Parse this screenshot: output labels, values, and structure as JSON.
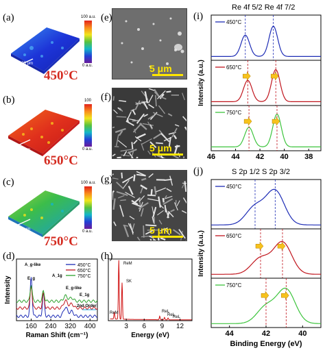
{
  "panels": {
    "a": {
      "label": "(a)",
      "temp": "450°C",
      "cbar_top": "100 a.u.",
      "cbar_bottom": "0 a.u.",
      "scale": "100 μm"
    },
    "b": {
      "label": "(b)",
      "temp": "650°C",
      "cbar_top": "100",
      "cbar_bottom": "0 a.u.",
      "scale": "100 μm"
    },
    "c": {
      "label": "(c)",
      "temp": "750°C",
      "cbar_top": "100 a.u.",
      "cbar_bottom": "0 a.u.",
      "scale": "100 μm"
    },
    "e": {
      "label": "(e)",
      "scale": "5 μm"
    },
    "f": {
      "label": "(f)",
      "scale": "5 μm"
    },
    "g": {
      "label": "(g)",
      "scale": "5 μm"
    }
  },
  "chart_data": [
    {
      "panel": "(d)",
      "type": "line",
      "xlabel": "Raman Shift (cm⁻¹)",
      "ylabel": "Intensity",
      "xticks": [
        160,
        240,
        320,
        400
      ],
      "xlim": [
        100,
        430
      ],
      "annotations": [
        "A_g-like",
        "E_g",
        "A_1g",
        "E_g-like",
        "E_1g",
        "2nd Order"
      ],
      "series": [
        {
          "name": "450°C",
          "color": "#1c2bb5",
          "peaks": [
            [
              160,
              0.95
            ],
            [
              210,
              0.55
            ],
            [
              300,
              0.22
            ],
            [
              325,
              0.12
            ]
          ]
        },
        {
          "name": "650°C",
          "color": "#c0141c",
          "peaks": [
            [
              160,
              0.55
            ],
            [
              210,
              0.35
            ],
            [
              300,
              0.18
            ],
            [
              325,
              0.1
            ]
          ]
        },
        {
          "name": "750°C",
          "color": "#2ca02c",
          "peaks": [
            [
              160,
              0.4
            ],
            [
              210,
              0.25
            ],
            [
              300,
              0.13
            ],
            [
              325,
              0.08
            ]
          ]
        }
      ]
    },
    {
      "panel": "(h)",
      "type": "line",
      "xlabel": "Energy (eV)",
      "xticks": [
        3,
        6,
        9,
        12
      ],
      "xlim": [
        0,
        14
      ],
      "annotations": [
        "ReM",
        "SK",
        "ReM",
        "ReL",
        "ReL",
        "ReL"
      ],
      "series": [
        {
          "name": "",
          "color": "#d01010",
          "peaks": [
            [
              1.75,
              1.0
            ],
            [
              2.3,
              0.62
            ],
            [
              1.0,
              0.12
            ],
            [
              8.6,
              0.06
            ],
            [
              9.4,
              0.04
            ],
            [
              10.0,
              0.03
            ]
          ]
        }
      ]
    },
    {
      "panel": "(i)",
      "type": "line",
      "xlabel": "",
      "ylabel": "Intensity (a.u.)",
      "xticks": [
        46,
        44,
        42,
        40,
        38
      ],
      "xlim": [
        46,
        37
      ],
      "title": "Re 4f 5/2  Re 4f 7/2",
      "series": [
        {
          "name": "450°C",
          "color": "#1c2bb5",
          "peaks": [
            [
              43.2,
              0.6
            ],
            [
              40.9,
              0.85
            ]
          ]
        },
        {
          "name": "650°C",
          "color": "#c0141c",
          "peaks": [
            [
              43.0,
              0.6
            ],
            [
              40.7,
              0.9
            ]
          ]
        },
        {
          "name": "750°C",
          "color": "#3cc43c",
          "peaks": [
            [
              42.9,
              0.55
            ],
            [
              40.6,
              0.92
            ]
          ]
        }
      ]
    },
    {
      "panel": "(j)",
      "type": "line",
      "xlabel": "Binding Energy (eV)",
      "ylabel": "Intensity (a.u.)",
      "xticks": [
        44,
        42,
        40
      ],
      "xlim": [
        45,
        39
      ],
      "title": "S 2p 1/2  S 2p 3/2",
      "series": [
        {
          "name": "450°C",
          "color": "#1c2bb5",
          "peaks": [
            [
              42.6,
              0.45
            ],
            [
              41.5,
              0.85
            ]
          ]
        },
        {
          "name": "650°C",
          "color": "#c0141c",
          "peaks": [
            [
              42.3,
              0.4
            ],
            [
              41.1,
              0.8
            ]
          ]
        },
        {
          "name": "750°C",
          "color": "#3cc43c",
          "peaks": [
            [
              42.0,
              0.42
            ],
            [
              40.9,
              0.85
            ]
          ]
        }
      ]
    }
  ],
  "labels": {
    "d": "(d)",
    "h": "(h)",
    "i": "(i)",
    "j": "(j)",
    "raman_x": "Raman Shift (cm",
    "raman_x_sup": "-1",
    "raman_x_end": ")",
    "raman_y": "Intensity",
    "edx_x": "Energy (eV)",
    "xps_y": "Intensity (a.u.)",
    "xps_x": "Binding Energy (eV)",
    "re_title_a": "Re 4",
    "re_title_f": "f",
    "re_sub_a": "5/2",
    "re_title_b": "Re 4",
    "re_sub_b": "7/2",
    "s_title_a": "S 2",
    "s_title_p": "p",
    "s_sub_a": "1/2",
    "s_sub_b": "3/2"
  }
}
